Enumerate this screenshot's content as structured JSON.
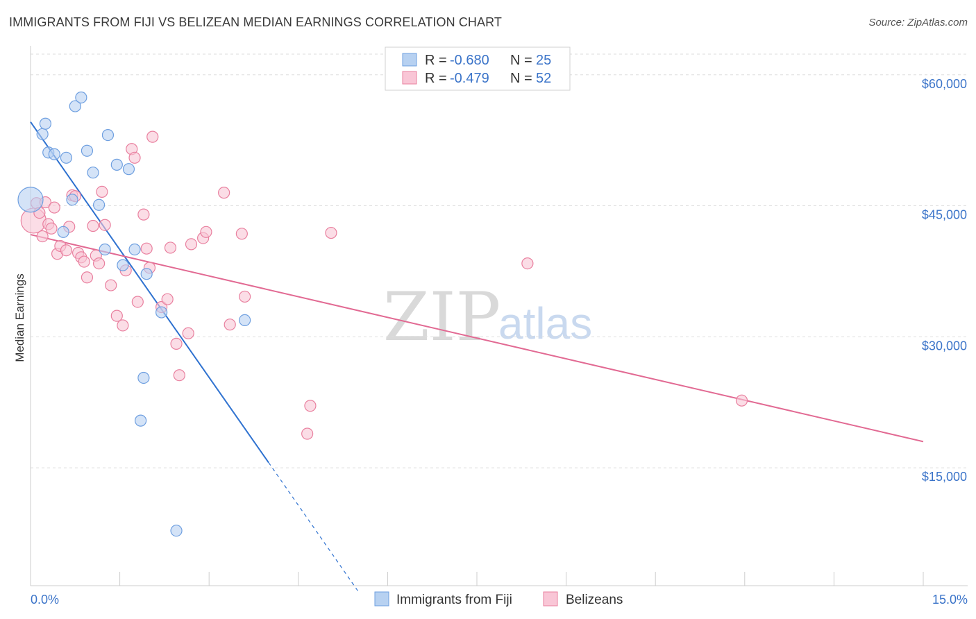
{
  "header": {
    "title": "IMMIGRANTS FROM FIJI VS BELIZEAN MEDIAN EARNINGS CORRELATION CHART",
    "source": "Source: ZipAtlas.com"
  },
  "legend_top": {
    "rows": [
      {
        "r_label": "R = ",
        "r_value": "-0.680",
        "n_label": "N = ",
        "n_value": "25"
      },
      {
        "r_label": "R = ",
        "r_value": "-0.479",
        "n_label": "N = ",
        "n_value": "52"
      }
    ]
  },
  "legend_bottom": {
    "items": [
      "Immigrants from Fiji",
      "Belizeans"
    ]
  },
  "watermark": {
    "zip": "ZIP",
    "atlas": "atlas"
  },
  "colors": {
    "fiji_fill": "#b7d1f1",
    "fiji_stroke": "#6e9fe0",
    "fiji_line": "#2f72d0",
    "belize_fill": "#f9c6d6",
    "belize_stroke": "#e9809f",
    "belize_line": "#e26a93",
    "axis_text": "#3b74c9",
    "grid": "#dddddd"
  },
  "chart_data": {
    "type": "scatter",
    "xlabel": "",
    "ylabel": "Median Earnings",
    "xlim": [
      0,
      15
    ],
    "ylim": [
      1500,
      63000
    ],
    "x_tick_labels": [
      "0.0%",
      "15.0%"
    ],
    "y_ticks": [
      {
        "value": 15000,
        "label": "$15,000"
      },
      {
        "value": 30000,
        "label": "$30,000"
      },
      {
        "value": 45000,
        "label": "$45,000"
      },
      {
        "value": 60000,
        "label": "$60,000"
      }
    ],
    "grid": true,
    "legend_position": "top-center",
    "series": [
      {
        "name": "Immigrants from Fiji",
        "r": -0.68,
        "n": 25,
        "points": [
          [
            0.0,
            45.7
          ],
          [
            0.2,
            53.2
          ],
          [
            0.25,
            54.4
          ],
          [
            0.3,
            51.1
          ],
          [
            0.4,
            50.9
          ],
          [
            0.6,
            50.5
          ],
          [
            0.7,
            45.7
          ],
          [
            0.55,
            42.0
          ],
          [
            0.75,
            56.4
          ],
          [
            0.85,
            57.4
          ],
          [
            0.95,
            51.3
          ],
          [
            1.05,
            48.8
          ],
          [
            1.15,
            45.1
          ],
          [
            1.3,
            53.1
          ],
          [
            1.45,
            49.7
          ],
          [
            1.65,
            49.2
          ],
          [
            1.25,
            40.0
          ],
          [
            1.55,
            38.2
          ],
          [
            1.75,
            40.0
          ],
          [
            1.95,
            37.2
          ],
          [
            2.2,
            32.8
          ],
          [
            1.9,
            25.3
          ],
          [
            1.85,
            20.4
          ],
          [
            2.45,
            7.8
          ],
          [
            3.6,
            31.9
          ]
        ],
        "trend": {
          "x0": 0.0,
          "y0": 54.6,
          "x1": 4.0,
          "y1": 15.6,
          "dash_x1": 5.5,
          "dash_y1": 0.9
        }
      },
      {
        "name": "Belizeans",
        "r": -0.479,
        "n": 52,
        "points": [
          [
            0.05,
            43.3
          ],
          [
            0.1,
            45.3
          ],
          [
            0.15,
            44.2
          ],
          [
            0.2,
            41.5
          ],
          [
            0.25,
            45.4
          ],
          [
            0.3,
            42.9
          ],
          [
            0.35,
            42.4
          ],
          [
            0.45,
            39.5
          ],
          [
            0.5,
            40.4
          ],
          [
            0.6,
            39.9
          ],
          [
            0.65,
            42.6
          ],
          [
            0.7,
            46.2
          ],
          [
            0.75,
            46.1
          ],
          [
            0.8,
            39.6
          ],
          [
            0.85,
            39.1
          ],
          [
            0.9,
            38.6
          ],
          [
            0.95,
            36.8
          ],
          [
            1.05,
            42.7
          ],
          [
            1.1,
            39.3
          ],
          [
            1.15,
            38.4
          ],
          [
            1.2,
            46.6
          ],
          [
            1.25,
            42.8
          ],
          [
            1.35,
            35.9
          ],
          [
            1.45,
            32.4
          ],
          [
            1.55,
            31.3
          ],
          [
            1.6,
            37.6
          ],
          [
            1.7,
            51.5
          ],
          [
            1.75,
            50.5
          ],
          [
            1.8,
            34.0
          ],
          [
            1.9,
            44.0
          ],
          [
            1.95,
            40.1
          ],
          [
            2.0,
            37.9
          ],
          [
            2.05,
            52.9
          ],
          [
            2.2,
            33.4
          ],
          [
            2.3,
            34.3
          ],
          [
            2.35,
            40.2
          ],
          [
            2.45,
            29.2
          ],
          [
            2.5,
            25.6
          ],
          [
            2.65,
            30.4
          ],
          [
            2.7,
            40.6
          ],
          [
            2.9,
            41.3
          ],
          [
            2.95,
            42.0
          ],
          [
            3.25,
            46.5
          ],
          [
            3.35,
            31.4
          ],
          [
            3.55,
            41.8
          ],
          [
            3.6,
            34.6
          ],
          [
            4.65,
            18.9
          ],
          [
            4.7,
            22.1
          ],
          [
            5.05,
            41.9
          ],
          [
            8.35,
            38.4
          ],
          [
            11.95,
            22.7
          ],
          [
            0.4,
            44.8
          ]
        ],
        "trend": {
          "x0": 0.0,
          "y0": 41.7,
          "x1": 15.0,
          "y1": 18.0
        }
      }
    ]
  }
}
